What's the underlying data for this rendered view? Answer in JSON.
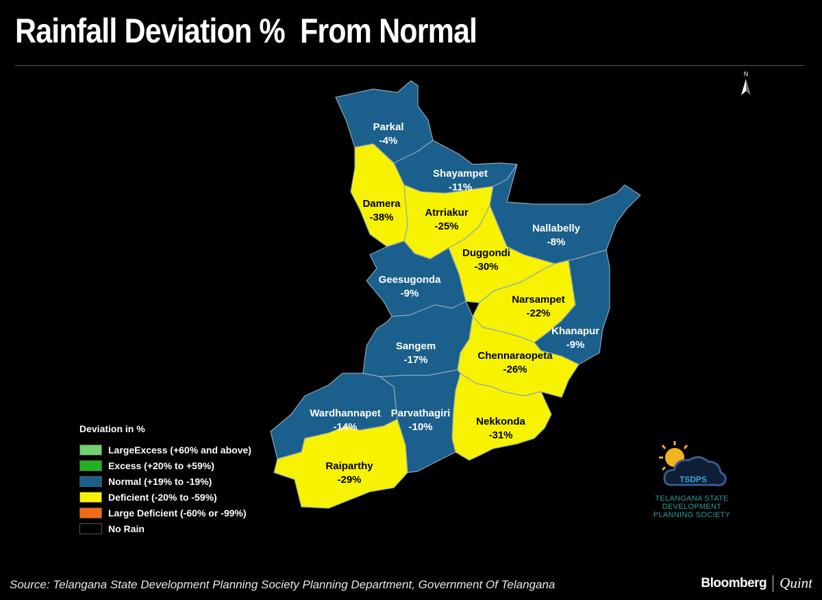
{
  "title": "Rainfall Deviation %  From Normal",
  "north_label": "N",
  "colors": {
    "normal": "#1b5f8c",
    "deficient": "#f7f200",
    "large_excess": "#6fd16f",
    "excess": "#1fb51f",
    "large_deficient": "#f06a14",
    "no_rain": "#000000",
    "border": "#8fa6b8"
  },
  "districts": [
    {
      "name": "Parkal",
      "deviation": "-4%",
      "category": "normal"
    },
    {
      "name": "Shayampet",
      "deviation": "-11%",
      "category": "normal"
    },
    {
      "name": "Damera",
      "deviation": "-38%",
      "category": "deficient"
    },
    {
      "name": "Atrriakur",
      "deviation": "-25%",
      "category": "deficient"
    },
    {
      "name": "Nallabelly",
      "deviation": "-8%",
      "category": "normal"
    },
    {
      "name": "Duggondi",
      "deviation": "-30%",
      "category": "deficient"
    },
    {
      "name": "Geesugonda",
      "deviation": "-9%",
      "category": "normal"
    },
    {
      "name": "Narsampet",
      "deviation": "-22%",
      "category": "deficient"
    },
    {
      "name": "Khanapur",
      "deviation": "-9%",
      "category": "normal"
    },
    {
      "name": "Sangem",
      "deviation": "-17%",
      "category": "normal"
    },
    {
      "name": "Chennaraopeta",
      "deviation": "-26%",
      "category": "deficient"
    },
    {
      "name": "Wardhannapet",
      "deviation": "-14%",
      "category": "normal"
    },
    {
      "name": "Parvathagiri",
      "deviation": "-10%",
      "category": "normal"
    },
    {
      "name": "Nekkonda",
      "deviation": "-31%",
      "category": "deficient"
    },
    {
      "name": "Raiparthy",
      "deviation": "-29%",
      "category": "deficient"
    }
  ],
  "legend": {
    "title": "Deviation in %",
    "items": [
      {
        "label": "LargeExcess (+60% and above)",
        "category": "large_excess"
      },
      {
        "label": "Excess (+20% to +59%)",
        "category": "excess"
      },
      {
        "label": "Normal (+19% to -19%)",
        "category": "normal"
      },
      {
        "label": "Deficient (-20% to -59%)",
        "category": "deficient"
      },
      {
        "label": "Large Deficient (-60% or -99%)",
        "category": "large_deficient"
      },
      {
        "label": "No Rain",
        "category": "no_rain"
      }
    ]
  },
  "logo": {
    "abbr": "TSDPS",
    "lines": [
      "TELANGANA STATE",
      "DEVELOPMENT",
      "PLANNING SOCIETY"
    ]
  },
  "source": "Source: Telangana State Development Planning Society Planning Department, Government Of Telangana",
  "brand": {
    "primary": "Bloomberg",
    "secondary": "Quint"
  }
}
